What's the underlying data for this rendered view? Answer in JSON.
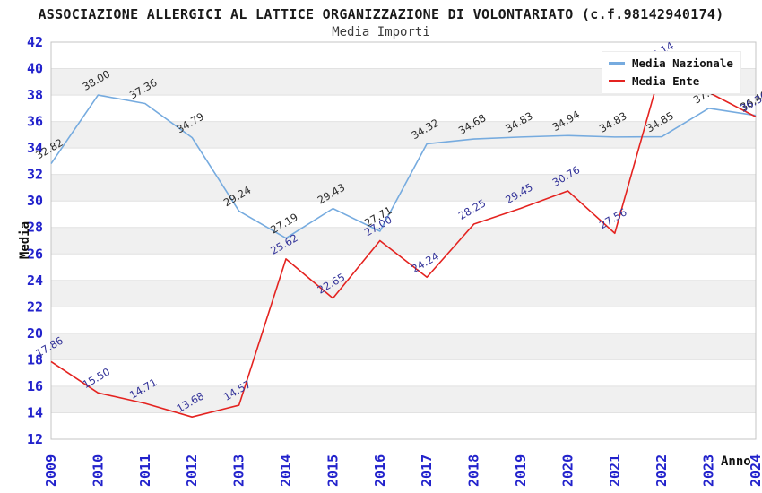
{
  "chart": {
    "title": "ASSOCIAZIONE ALLERGICI AL LATTICE ORGANIZZAZIONE DI VOLONTARIATO (c.f.98142940174)",
    "subtitle": "Media Importi",
    "ylabel": "Media",
    "xlabel": "Anno"
  },
  "legend": {
    "items": [
      {
        "label": "Media Nazionale",
        "color": "#76abdf"
      },
      {
        "label": "Media Ente",
        "color": "#e42320"
      }
    ]
  },
  "chart_data": {
    "type": "line",
    "title": "ASSOCIAZIONE ALLERGICI AL LATTICE ORGANIZZAZIONE DI VOLONTARIATO (c.f.98142940174)",
    "subtitle": "Media Importi",
    "xlabel": "Anno",
    "ylabel": "Media",
    "ylim": [
      12,
      42
    ],
    "ytick_step": 2,
    "grid": "horizontal-gridlines-with-alternating-bands",
    "band_color": "#f0f0f0",
    "gridline_color": "#e2e2e2",
    "border_color": "#c4c4c4",
    "axis_tick_color": "#2222cc",
    "legend_position": "top-right",
    "categories": [
      "2009",
      "2010",
      "2011",
      "2012",
      "2013",
      "2014",
      "2015",
      "2016",
      "2017",
      "2018",
      "2019",
      "2020",
      "2021",
      "2022",
      "2023",
      "2024"
    ],
    "series": [
      {
        "name": "Media Nazionale",
        "color": "#76abdf",
        "label_color": "#2b2b2b",
        "values": [
          32.82,
          38.0,
          37.36,
          34.79,
          29.24,
          27.19,
          29.43,
          27.71,
          34.32,
          34.68,
          34.83,
          34.94,
          34.83,
          34.85,
          37.0,
          36.46
        ],
        "labels": [
          "32.82",
          "38.00",
          "37.36",
          "34.79",
          "29.24",
          "27.19",
          "29.43",
          "27.71",
          "34.32",
          "34.68",
          "34.83",
          "34.94",
          "34.83",
          "34.85",
          "37.00",
          "36.46"
        ]
      },
      {
        "name": "Media Ente",
        "color": "#e42320",
        "label_color": "#333399",
        "values": [
          17.86,
          15.5,
          14.71,
          13.68,
          14.57,
          25.62,
          22.65,
          27.0,
          24.24,
          28.25,
          29.45,
          30.76,
          27.56,
          40.14,
          38.2,
          36.36
        ],
        "labels": [
          "17.86",
          "15.50",
          "14.71",
          "13.68",
          "14.57",
          "25.62",
          "22.65",
          "27.00",
          "24.24",
          "28.25",
          "29.45",
          "30.76",
          "27.56",
          "40.14",
          "38.20",
          "36.36"
        ]
      }
    ]
  }
}
